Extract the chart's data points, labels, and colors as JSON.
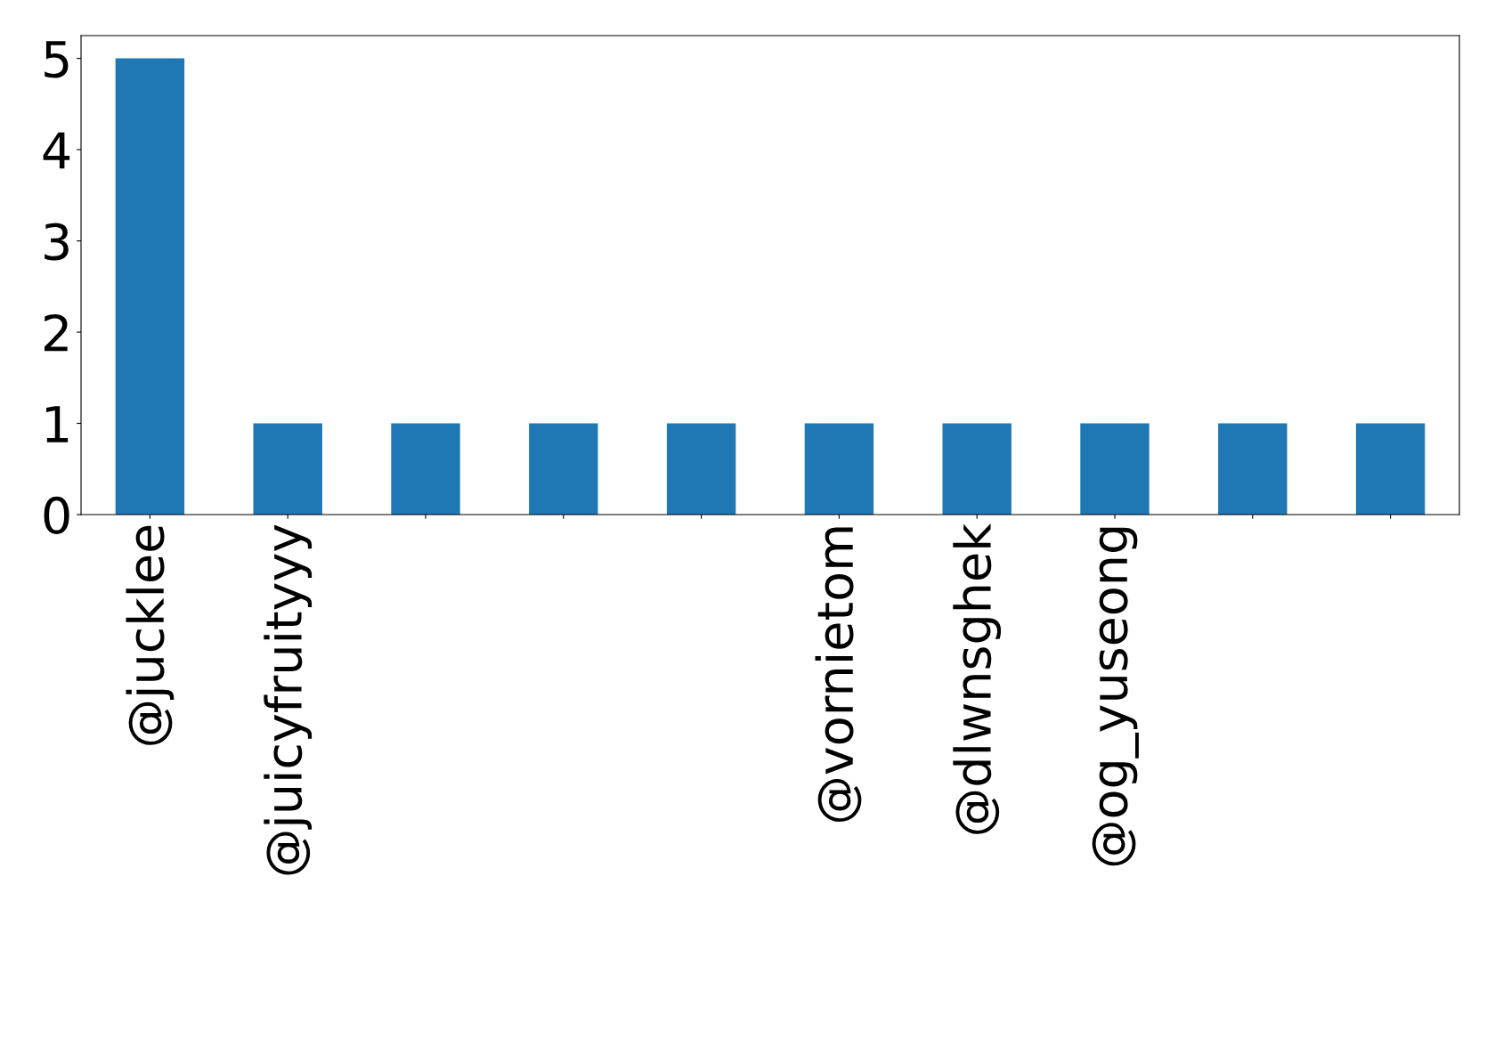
{
  "chart_data": {
    "type": "bar",
    "categories": [
      "@jucklee",
      "@juicyfruityyy",
      null,
      null,
      null,
      "@vornietom",
      "@dlwnsghek",
      "@og_yuseong",
      null,
      null
    ],
    "values": [
      5,
      1,
      1,
      1,
      1,
      1,
      1,
      1,
      1,
      1
    ],
    "color": "#1f77b4",
    "ylim": [
      0,
      5.25
    ],
    "yticks": [
      0,
      1,
      2,
      3,
      4,
      5
    ],
    "grid": false,
    "legend": false
  }
}
